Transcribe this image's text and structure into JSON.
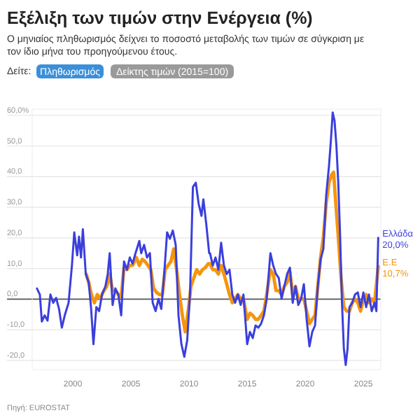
{
  "chart_data": {
    "type": "line",
    "title": "Εξέλιξη των τιμών στην Ενέργεια (%)",
    "subtitle": "Ο μηνιαίος πληθωρισμός δείχνει το ποσοστό μεταβολής των τιμών σε σύγκριση με τον ίδιο μήνα του προηγούμενου έτους.",
    "annotations": [
      "Δείτε:",
      "Πληθωρισμός",
      "Δείκτης τιμών (2015=100)",
      "Πηγή: EUROSTAT"
    ],
    "xlim": [
      1996.5,
      2026.5
    ],
    "xticks": [
      2000,
      2005,
      2010,
      2015,
      2020,
      2025
    ],
    "ylim": [
      -23,
      62
    ],
    "yticks": [
      {
        "value": -20,
        "label": "-20,0"
      },
      {
        "value": -10,
        "label": "-10,0"
      },
      {
        "value": 0,
        "label": "0,0"
      },
      {
        "value": 10,
        "label": "10,0"
      },
      {
        "value": 20,
        "label": "20,0"
      },
      {
        "value": 30,
        "label": "30,0"
      },
      {
        "value": 40,
        "label": "40,0"
      },
      {
        "value": 50,
        "label": "50,0"
      },
      {
        "value": 60,
        "label": "60,0%"
      }
    ],
    "grid": "y",
    "line_style": "solid",
    "ref_lines": [
      {
        "axis": "y",
        "value": 0,
        "color": "#555555"
      }
    ],
    "series": [
      {
        "name": "Ελλάδα",
        "color": "#3b3fdc",
        "x": [
          1996.91,
          1997.16,
          1997.33,
          1997.57,
          1997.82,
          1998.07,
          1998.31,
          1998.56,
          1998.81,
          1999.05,
          1999.3,
          1999.63,
          1999.92,
          2000.12,
          2000.37,
          2000.53,
          2000.7,
          2000.86,
          2001.11,
          2001.36,
          2001.56,
          2001.77,
          2002.02,
          2002.26,
          2002.51,
          2002.8,
          2003.0,
          2003.17,
          2003.42,
          2003.66,
          2003.91,
          2004.16,
          2004.4,
          2004.65,
          2004.9,
          2005.14,
          2005.39,
          2005.72,
          2005.88,
          2006.13,
          2006.38,
          2006.63,
          2006.87,
          2007.12,
          2007.37,
          2007.61,
          2007.86,
          2008.11,
          2008.35,
          2008.6,
          2008.85,
          2009.09,
          2009.34,
          2009.59,
          2009.84,
          2010.08,
          2010.33,
          2010.58,
          2010.82,
          2011.07,
          2011.23,
          2011.48,
          2011.73,
          2011.8,
          2012.04,
          2012.28,
          2012.52,
          2012.76,
          2013.0,
          2013.24,
          2013.48,
          2013.72,
          2013.96,
          2014.2,
          2014.44,
          2014.68,
          2015.0,
          2015.24,
          2015.48,
          2015.72,
          2015.96,
          2016.2,
          2016.44,
          2016.68,
          2017.0,
          2017.24,
          2017.48,
          2017.72,
          2017.96,
          2018.2,
          2018.44,
          2018.68,
          2018.92,
          2019.16,
          2019.4,
          2019.64,
          2019.88,
          2020.12,
          2020.36,
          2020.6,
          2020.84,
          2021.08,
          2021.32,
          2021.56,
          2021.8,
          2022.04,
          2022.2,
          2022.36,
          2022.52,
          2022.68,
          2022.84,
          2023.0,
          2023.16,
          2023.32,
          2023.48,
          2023.64,
          2023.8,
          2024.04,
          2024.28,
          2024.52,
          2024.76,
          2025.0,
          2025.24,
          2025.48,
          2025.72,
          2025.96,
          2026.12,
          2026.28
        ],
        "values": [
          3.5,
          1.5,
          -7.3,
          -5.3,
          -7,
          1.5,
          -1.2,
          0.4,
          -3.2,
          -9.3,
          -5.3,
          -1.2,
          11,
          21.8,
          14.3,
          20.4,
          13.6,
          22.8,
          8.2,
          5.5,
          -2.6,
          -14.7,
          -2.6,
          -3.9,
          1.5,
          4.2,
          8.2,
          15,
          -1.9,
          3.5,
          1.5,
          -5.3,
          12.3,
          9.6,
          13.6,
          11.6,
          15,
          19,
          15,
          17.7,
          13.6,
          15,
          -1.2,
          -3.9,
          0.1,
          -3.2,
          8.2,
          21.8,
          19.7,
          22.4,
          17.7,
          -5.3,
          -14.7,
          -18.8,
          -13.4,
          1.5,
          36.6,
          38,
          31.2,
          27.2,
          32.6,
          24.5,
          15,
          15,
          11,
          13.6,
          9.6,
          18.4,
          11,
          8.2,
          9.6,
          1.5,
          -1.2,
          1.5,
          -1.9,
          1.5,
          -14.7,
          -10.7,
          -12.7,
          -8.6,
          -9.3,
          -8,
          -5.3,
          0.1,
          15,
          11,
          8.2,
          6.9,
          0.1,
          4.2,
          8.2,
          10.3,
          -1.2,
          4.2,
          -1.9,
          0.1,
          4.9,
          -6.6,
          -15.4,
          -10.7,
          -8.6,
          4.2,
          13,
          16.4,
          33.9,
          43.4,
          51.5,
          60.9,
          58.2,
          50.1,
          38,
          20.4,
          -1.2,
          -16.1,
          -21.5,
          -16.1,
          -2.6,
          -1.2,
          1.5,
          2.2,
          -2.6,
          2.2,
          -2.6,
          1.5,
          -3.9,
          -1.2,
          -3.9,
          20
        ],
        "value_labels": [
          null,
          null,
          null,
          null,
          null,
          null,
          null,
          null,
          null,
          null,
          null,
          null,
          null,
          null,
          null,
          null,
          null,
          null,
          null,
          null,
          null,
          null,
          null,
          null,
          null,
          null,
          null,
          null,
          null,
          null,
          null,
          null,
          null,
          null,
          null,
          null,
          null,
          null,
          null,
          null,
          null,
          null,
          null,
          null,
          null,
          null,
          null,
          null,
          null,
          null,
          null,
          null,
          null,
          null,
          null,
          null,
          null,
          null,
          null,
          null,
          null,
          null,
          null,
          null,
          null,
          null,
          null,
          null,
          null,
          null,
          null,
          null,
          null,
          null,
          null,
          null,
          null,
          null,
          null,
          null,
          null,
          null,
          null,
          null,
          null,
          null,
          null,
          null,
          null,
          null,
          null,
          null,
          null,
          null,
          null,
          null,
          null,
          null,
          null,
          null,
          null,
          null,
          null,
          null,
          null,
          null,
          null,
          null,
          null,
          null,
          null,
          null,
          null,
          null,
          null,
          null,
          null,
          null,
          null,
          null,
          null,
          null,
          null,
          null,
          null,
          null,
          null,
          "20,0%"
        ]
      },
      {
        "name": "E.E",
        "color": "#f5950f",
        "x": [
          2001.15,
          2001.36,
          2001.6,
          2001.85,
          2002.1,
          2002.35,
          2002.59,
          2002.92,
          2003.17,
          2003.42,
          2003.66,
          2003.91,
          2004.16,
          2004.4,
          2004.65,
          2004.9,
          2005.14,
          2005.47,
          2005.72,
          2005.97,
          2006.21,
          2006.46,
          2006.71,
          2006.95,
          2007.2,
          2007.45,
          2007.7,
          2007.94,
          2008.19,
          2008.44,
          2008.68,
          2008.93,
          2009.18,
          2009.42,
          2009.67,
          2009.92,
          2010.16,
          2010.41,
          2010.66,
          2010.91,
          2011.15,
          2011.4,
          2011.65,
          2011.8,
          2012.04,
          2012.28,
          2012.52,
          2012.76,
          2013.0,
          2013.24,
          2013.48,
          2013.72,
          2013.96,
          2014.2,
          2014.44,
          2014.68,
          2015.0,
          2015.24,
          2015.48,
          2015.72,
          2015.96,
          2016.2,
          2016.44,
          2016.68,
          2017.0,
          2017.24,
          2017.48,
          2017.72,
          2017.96,
          2018.2,
          2018.44,
          2018.68,
          2018.92,
          2019.16,
          2019.4,
          2019.64,
          2019.88,
          2020.12,
          2020.36,
          2020.6,
          2020.84,
          2021.08,
          2021.32,
          2021.56,
          2021.8,
          2022.04,
          2022.28,
          2022.44,
          2022.6,
          2022.84,
          2023.08,
          2023.32,
          2023.56,
          2023.8,
          2024.04,
          2024.28,
          2024.52,
          2024.76,
          2025.0,
          2025.24,
          2025.48,
          2025.72,
          2025.96,
          2026.28
        ],
        "values": [
          8.2,
          5.5,
          1.5,
          -1.2,
          1.5,
          0.1,
          2.2,
          4.2,
          8.2,
          2.8,
          2.8,
          1.5,
          0.8,
          10.3,
          9.6,
          11,
          11,
          13.6,
          11,
          13,
          12.3,
          11,
          9.6,
          3.5,
          2.2,
          1.5,
          1.5,
          9.6,
          11,
          12.3,
          16.4,
          9.6,
          1.5,
          -5.3,
          -10.7,
          -3.9,
          4.2,
          6.9,
          9.6,
          8.2,
          9.6,
          10.3,
          11.6,
          11.6,
          9.6,
          9.6,
          8.2,
          11,
          8.2,
          4.9,
          1.5,
          -1.2,
          0.1,
          1.5,
          0.1,
          0.1,
          -6.6,
          -4.6,
          -5.3,
          -6.6,
          -6.6,
          -5.3,
          -3.9,
          1.5,
          9.6,
          8.2,
          2.8,
          2.8,
          1.5,
          4.2,
          5.5,
          8.9,
          1.5,
          4.2,
          0.1,
          0.1,
          0.1,
          -3.9,
          -8,
          -6.6,
          -5.3,
          4.2,
          13.6,
          20.4,
          31.2,
          38,
          40.7,
          41.4,
          32.6,
          20.4,
          6.9,
          -2.6,
          -3.9,
          -3.9,
          -1.2,
          0.1,
          -1.2,
          -3.9,
          0.1,
          1.5,
          -1.2,
          0.1,
          -1.2,
          10.7
        ],
        "value_labels": [
          null,
          null,
          null,
          null,
          null,
          null,
          null,
          null,
          null,
          null,
          null,
          null,
          null,
          null,
          null,
          null,
          null,
          null,
          null,
          null,
          null,
          null,
          null,
          null,
          null,
          null,
          null,
          null,
          null,
          null,
          null,
          null,
          null,
          null,
          null,
          null,
          null,
          null,
          null,
          null,
          null,
          null,
          null,
          null,
          null,
          null,
          null,
          null,
          null,
          null,
          null,
          null,
          null,
          null,
          null,
          null,
          null,
          null,
          null,
          null,
          null,
          null,
          null,
          null,
          null,
          null,
          null,
          null,
          null,
          null,
          null,
          null,
          null,
          null,
          null,
          null,
          null,
          null,
          null,
          null,
          null,
          null,
          null,
          null,
          null,
          null,
          null,
          null,
          null,
          null,
          null,
          null,
          null,
          null,
          null,
          null,
          null,
          null,
          null,
          null,
          null,
          null,
          null,
          "10,7%"
        ]
      }
    ]
  }
}
